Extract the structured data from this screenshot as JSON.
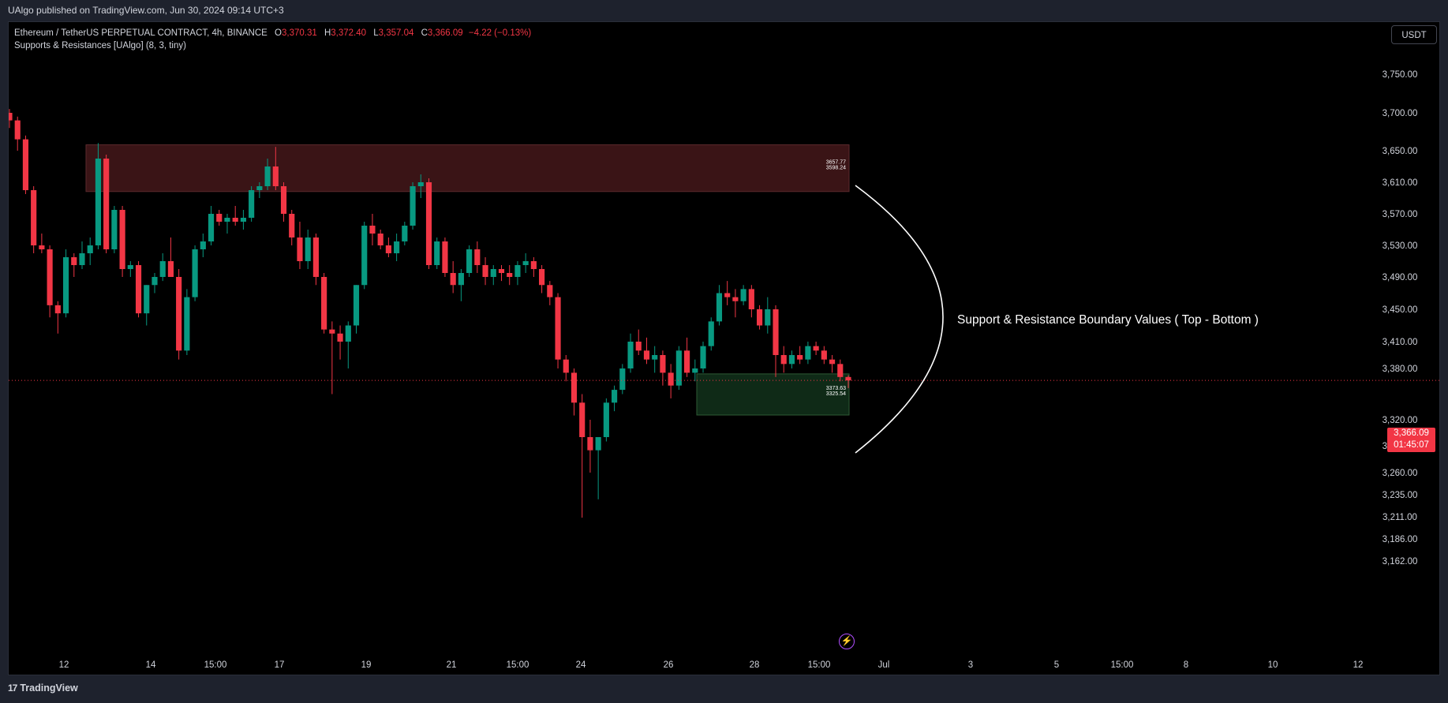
{
  "header": {
    "published_line": "UAlgo published on TradingView.com, Jun 30, 2024 09:14 UTC+3"
  },
  "legend": {
    "symbol": "Ethereum / TetherUS PERPETUAL CONTRACT, 4h, BINANCE",
    "ohlc": [
      {
        "key": "O",
        "value": "3,370.31"
      },
      {
        "key": "H",
        "value": "3,372.40"
      },
      {
        "key": "L",
        "value": "3,357.04"
      },
      {
        "key": "C",
        "value": "3,366.09"
      }
    ],
    "change": "−4.22 (−0.13%)",
    "indicator": "Supports & Resistances [UAlgo] (8, 3, tiny)"
  },
  "currency_button": "USDT",
  "annotation": "Support & Resistance Boundary Values ( Top - Bottom )",
  "current_price": {
    "value": "3,366.09",
    "countdown": "01:45:07"
  },
  "footer": {
    "brand": "TradingView",
    "logo_text": "17"
  },
  "colors": {
    "up": "#089981",
    "down": "#f23645",
    "resistance_fill": "#3a1416",
    "support_fill": "#0f2a17"
  },
  "chart_data": {
    "type": "candlestick",
    "y_ticks": [
      "3,750.00",
      "3,700.00",
      "3,650.00",
      "3,610.00",
      "3,570.00",
      "3,530.00",
      "3,490.00",
      "3,450.00",
      "3,410.00",
      "3,380.00",
      "3,320.00",
      "3,290.00",
      "3,260.00",
      "3,235.00",
      "3,211.00",
      "3,186.00",
      "3,162.00"
    ],
    "x_ticks": [
      "12",
      "14",
      "15:00",
      "17",
      "19",
      "21",
      "15:00",
      "24",
      "26",
      "28",
      "15:00",
      "Jul",
      "3",
      "5",
      "15:00",
      "8",
      "10",
      "12"
    ],
    "zones": [
      {
        "type": "resistance",
        "top": 3657.77,
        "bottom": 3598.24,
        "top_label": "3657.77",
        "bottom_label": "3598.24"
      },
      {
        "type": "support",
        "top": 3373.63,
        "bottom": 3325.54,
        "top_label": "3373.63",
        "bottom_label": "3325.54"
      }
    ],
    "last_price": 3366.09,
    "candles": [
      [
        3700,
        3705,
        3680,
        3690
      ],
      [
        3690,
        3695,
        3650,
        3665
      ],
      [
        3665,
        3670,
        3595,
        3600
      ],
      [
        3600,
        3605,
        3520,
        3530
      ],
      [
        3530,
        3545,
        3520,
        3525
      ],
      [
        3525,
        3530,
        3440,
        3455
      ],
      [
        3455,
        3460,
        3420,
        3445
      ],
      [
        3445,
        3525,
        3440,
        3515
      ],
      [
        3515,
        3520,
        3490,
        3505
      ],
      [
        3505,
        3535,
        3500,
        3520
      ],
      [
        3520,
        3540,
        3505,
        3530
      ],
      [
        3530,
        3660,
        3525,
        3640
      ],
      [
        3640,
        3645,
        3520,
        3525
      ],
      [
        3525,
        3580,
        3520,
        3575
      ],
      [
        3575,
        3580,
        3490,
        3500
      ],
      [
        3500,
        3510,
        3490,
        3505
      ],
      [
        3505,
        3510,
        3440,
        3445
      ],
      [
        3445,
        3480,
        3430,
        3480
      ],
      [
        3480,
        3495,
        3470,
        3490
      ],
      [
        3490,
        3520,
        3485,
        3510
      ],
      [
        3510,
        3540,
        3490,
        3490
      ],
      [
        3490,
        3500,
        3390,
        3400
      ],
      [
        3400,
        3475,
        3395,
        3465
      ],
      [
        3465,
        3530,
        3460,
        3525
      ],
      [
        3525,
        3545,
        3515,
        3535
      ],
      [
        3535,
        3580,
        3530,
        3570
      ],
      [
        3570,
        3575,
        3555,
        3560
      ],
      [
        3560,
        3570,
        3545,
        3565
      ],
      [
        3565,
        3580,
        3555,
        3560
      ],
      [
        3560,
        3575,
        3550,
        3565
      ],
      [
        3565,
        3605,
        3560,
        3600
      ],
      [
        3600,
        3610,
        3590,
        3605
      ],
      [
        3605,
        3640,
        3600,
        3630
      ],
      [
        3630,
        3655,
        3600,
        3605
      ],
      [
        3605,
        3610,
        3560,
        3570
      ],
      [
        3570,
        3575,
        3530,
        3540
      ],
      [
        3540,
        3560,
        3500,
        3510
      ],
      [
        3510,
        3550,
        3500,
        3540
      ],
      [
        3540,
        3545,
        3480,
        3490
      ],
      [
        3490,
        3495,
        3420,
        3425
      ],
      [
        3425,
        3435,
        3350,
        3420
      ],
      [
        3420,
        3430,
        3390,
        3410
      ],
      [
        3410,
        3435,
        3380,
        3430
      ],
      [
        3430,
        3480,
        3420,
        3480
      ],
      [
        3480,
        3560,
        3475,
        3555
      ],
      [
        3555,
        3570,
        3530,
        3545
      ],
      [
        3545,
        3550,
        3525,
        3530
      ],
      [
        3530,
        3540,
        3515,
        3520
      ],
      [
        3520,
        3545,
        3510,
        3535
      ],
      [
        3535,
        3560,
        3530,
        3555
      ],
      [
        3555,
        3610,
        3550,
        3605
      ],
      [
        3605,
        3620,
        3590,
        3610
      ],
      [
        3610,
        3615,
        3500,
        3505
      ],
      [
        3505,
        3540,
        3500,
        3535
      ],
      [
        3535,
        3540,
        3490,
        3495
      ],
      [
        3495,
        3510,
        3470,
        3480
      ],
      [
        3480,
        3500,
        3460,
        3495
      ],
      [
        3495,
        3530,
        3490,
        3525
      ],
      [
        3525,
        3535,
        3495,
        3505
      ],
      [
        3505,
        3515,
        3480,
        3490
      ],
      [
        3490,
        3505,
        3480,
        3500
      ],
      [
        3500,
        3505,
        3485,
        3495
      ],
      [
        3495,
        3505,
        3480,
        3490
      ],
      [
        3490,
        3510,
        3480,
        3505
      ],
      [
        3505,
        3520,
        3495,
        3510
      ],
      [
        3510,
        3515,
        3490,
        3500
      ],
      [
        3500,
        3505,
        3470,
        3480
      ],
      [
        3480,
        3485,
        3455,
        3465
      ],
      [
        3465,
        3470,
        3380,
        3390
      ],
      [
        3390,
        3395,
        3365,
        3375
      ],
      [
        3375,
        3380,
        3325,
        3340
      ],
      [
        3340,
        3350,
        3210,
        3300
      ],
      [
        3300,
        3320,
        3260,
        3285
      ],
      [
        3285,
        3300,
        3230,
        3300
      ],
      [
        3300,
        3345,
        3295,
        3340
      ],
      [
        3340,
        3360,
        3330,
        3355
      ],
      [
        3355,
        3385,
        3350,
        3380
      ],
      [
        3380,
        3420,
        3375,
        3410
      ],
      [
        3410,
        3425,
        3395,
        3400
      ],
      [
        3400,
        3415,
        3385,
        3390
      ],
      [
        3390,
        3405,
        3375,
        3395
      ],
      [
        3395,
        3400,
        3360,
        3375
      ],
      [
        3375,
        3385,
        3345,
        3360
      ],
      [
        3360,
        3405,
        3355,
        3400
      ],
      [
        3400,
        3415,
        3370,
        3375
      ],
      [
        3375,
        3390,
        3365,
        3380
      ],
      [
        3380,
        3410,
        3375,
        3405
      ],
      [
        3405,
        3440,
        3400,
        3435
      ],
      [
        3435,
        3480,
        3430,
        3470
      ],
      [
        3470,
        3485,
        3455,
        3465
      ],
      [
        3465,
        3475,
        3440,
        3460
      ],
      [
        3460,
        3480,
        3455,
        3475
      ],
      [
        3475,
        3480,
        3440,
        3450
      ],
      [
        3450,
        3455,
        3425,
        3430
      ],
      [
        3430,
        3465,
        3420,
        3450
      ],
      [
        3450,
        3455,
        3370,
        3395
      ],
      [
        3395,
        3405,
        3375,
        3385
      ],
      [
        3385,
        3400,
        3380,
        3395
      ],
      [
        3395,
        3405,
        3385,
        3390
      ],
      [
        3390,
        3410,
        3385,
        3405
      ],
      [
        3405,
        3410,
        3395,
        3400
      ],
      [
        3400,
        3405,
        3385,
        3390
      ],
      [
        3390,
        3395,
        3375,
        3385
      ],
      [
        3385,
        3390,
        3365,
        3370
      ],
      [
        3370,
        3372,
        3357,
        3366
      ]
    ]
  }
}
